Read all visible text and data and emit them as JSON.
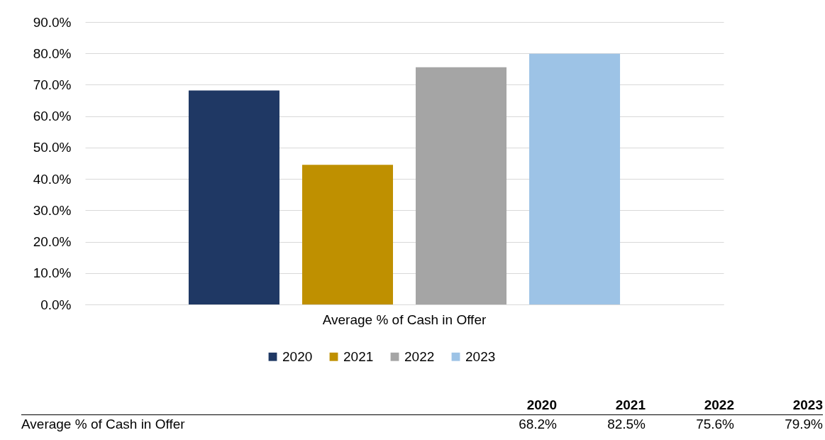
{
  "chart_data": {
    "type": "bar",
    "categories": [
      "Average % of Cash in Offer"
    ],
    "series": [
      {
        "name": "2020",
        "color": "#1f3864",
        "values": [
          68.2
        ]
      },
      {
        "name": "2021",
        "color": "#bf9000",
        "values": [
          44.5
        ]
      },
      {
        "name": "2022",
        "color": "#a5a5a5",
        "values": [
          75.6
        ]
      },
      {
        "name": "2023",
        "color": "#9dc3e6",
        "values": [
          79.9
        ]
      }
    ],
    "annotations": [
      "68.2%",
      "82.5%",
      "75.6%",
      "79.9%"
    ],
    "ylim": [
      0,
      90
    ],
    "yticks": [
      {
        "value": 0,
        "label": "0.0%"
      },
      {
        "value": 10,
        "label": "10.0%"
      },
      {
        "value": 20,
        "label": "20.0%"
      },
      {
        "value": 30,
        "label": "30.0%"
      },
      {
        "value": 40,
        "label": "40.0%"
      },
      {
        "value": 50,
        "label": "50.0%"
      },
      {
        "value": 60,
        "label": "60.0%"
      },
      {
        "value": 70,
        "label": "70.0%"
      },
      {
        "value": 80,
        "label": "80.0%"
      },
      {
        "value": 90,
        "label": "90.0%"
      }
    ],
    "grid": "y",
    "legend": "bottom"
  }
}
